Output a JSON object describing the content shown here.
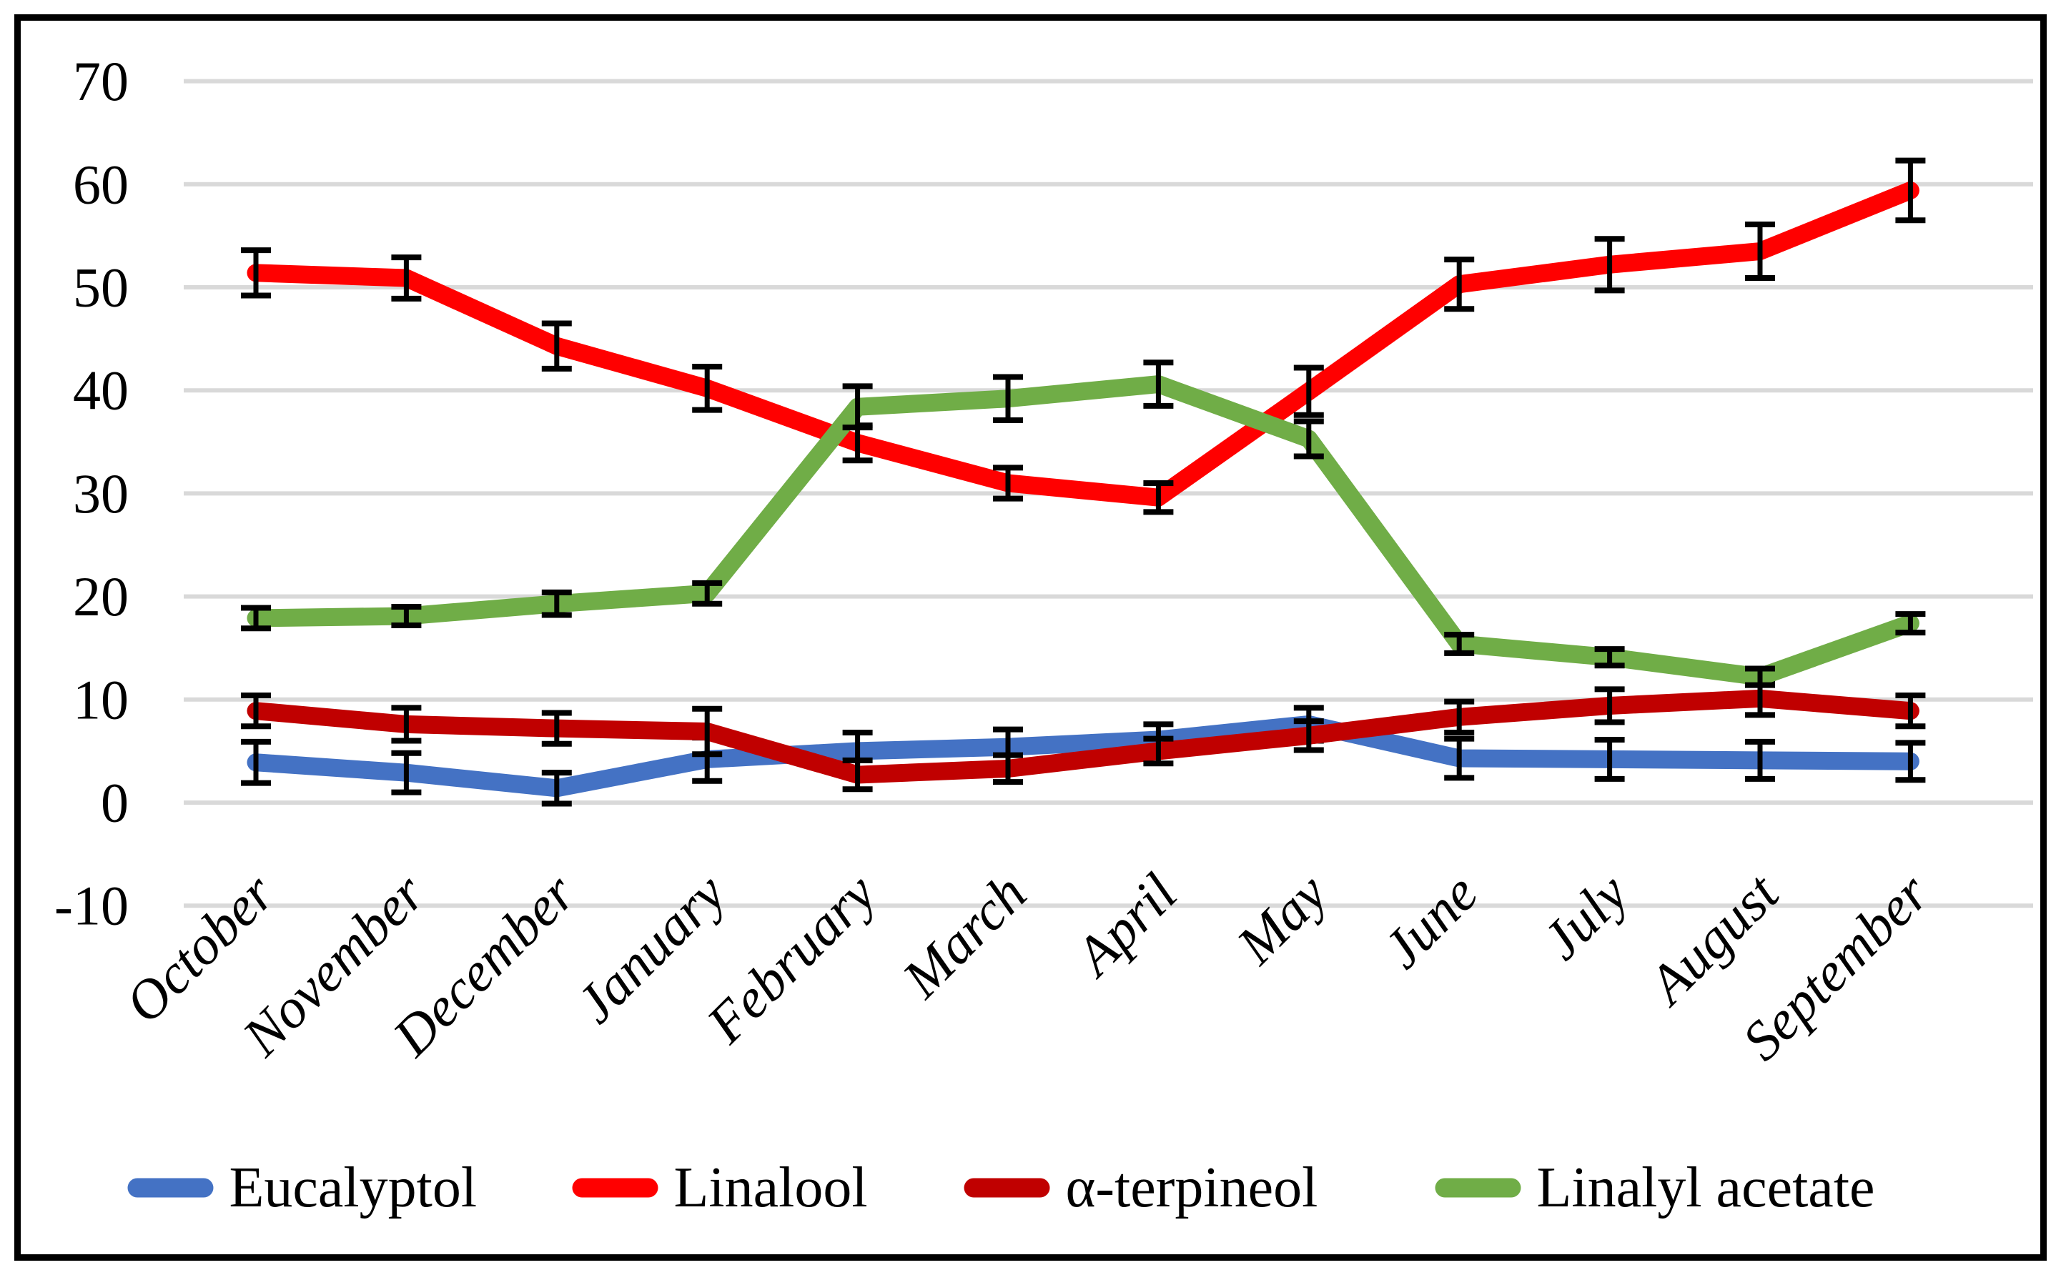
{
  "chart_data": {
    "type": "line",
    "title": "",
    "categories": [
      "October",
      "November",
      "December",
      "January",
      "February",
      "March",
      "April",
      "May",
      "June",
      "July",
      "August",
      "September"
    ],
    "series": [
      {
        "name": "Eucalyptol",
        "color": "#4472C4",
        "values": [
          3.9,
          2.9,
          1.4,
          4.2,
          5.0,
          5.4,
          6.1,
          7.6,
          4.3,
          4.2,
          4.1,
          4.0
        ],
        "errors": [
          2.0,
          1.9,
          1.5,
          2.1,
          1.8,
          1.7,
          1.5,
          1.6,
          1.9,
          1.9,
          1.8,
          1.8
        ]
      },
      {
        "name": "Linalool",
        "color": "#FF0000",
        "values": [
          51.4,
          50.9,
          44.3,
          40.2,
          34.9,
          31.0,
          29.6,
          39.9,
          50.3,
          52.2,
          53.5,
          59.4
        ],
        "errors": [
          2.2,
          2.0,
          2.2,
          2.1,
          1.7,
          1.5,
          1.4,
          2.3,
          2.4,
          2.5,
          2.6,
          2.9
        ]
      },
      {
        "name": "α-terpineol",
        "color": "#C00000",
        "values": [
          8.9,
          7.6,
          7.2,
          6.9,
          2.7,
          3.3,
          5.0,
          6.5,
          8.3,
          9.4,
          10.1,
          8.9
        ],
        "errors": [
          1.5,
          1.6,
          1.5,
          2.2,
          1.4,
          1.3,
          1.2,
          1.4,
          1.5,
          1.6,
          1.6,
          1.5
        ]
      },
      {
        "name": "Linalyl acetate",
        "color": "#70AD47",
        "values": [
          17.9,
          18.1,
          19.3,
          20.3,
          38.4,
          39.2,
          40.6,
          35.3,
          15.4,
          14.1,
          12.2,
          17.4
        ],
        "errors": [
          1.0,
          0.9,
          1.1,
          1.0,
          2.0,
          2.1,
          2.1,
          1.7,
          0.9,
          0.8,
          0.8,
          0.9
        ]
      }
    ],
    "ylim": [
      -10,
      70
    ],
    "yticks": [
      70,
      60,
      50,
      40,
      30,
      20,
      10,
      0,
      -10
    ],
    "xlabel": "",
    "ylabel": "",
    "grid": "horizontal",
    "legend_position": "bottom",
    "error_bars": true
  },
  "styles": {
    "background_color": "#FFFFFF",
    "border_color": "#000000",
    "gridline_color": "#D9D9D9",
    "text_color": "#000000"
  }
}
